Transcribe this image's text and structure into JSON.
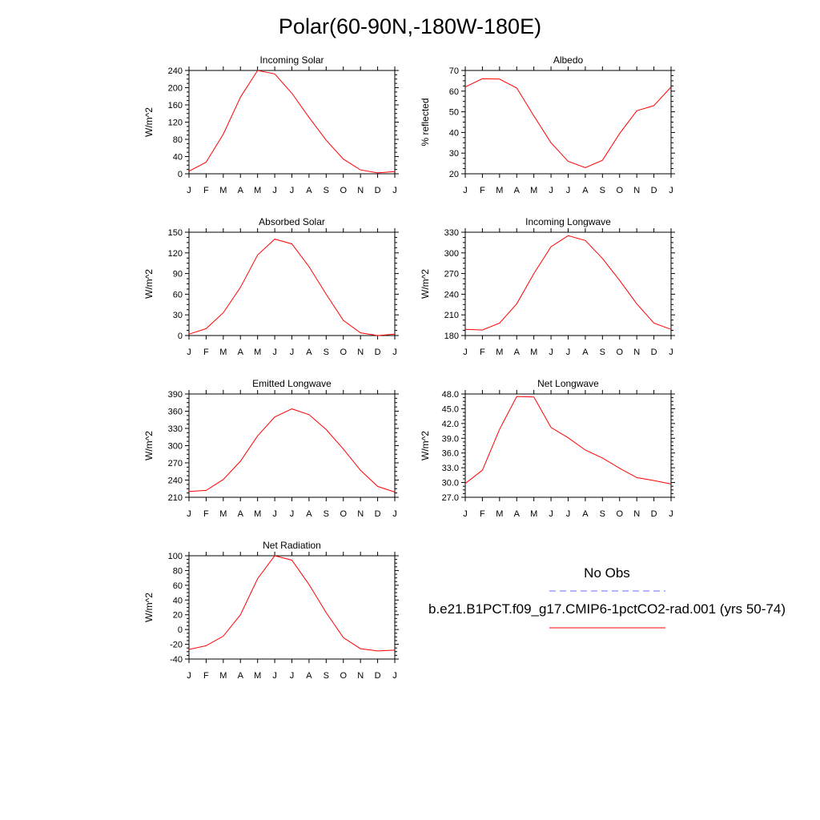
{
  "title": "Polar(60-90N,-180W-180E)",
  "colors": {
    "model": "#ff0000",
    "obs": "#6b6bff"
  },
  "legend": {
    "obs_label": "No Obs",
    "model_label": "b.e21.B1PCT.f09_g17.CMIP6-1pctCO2-rad.001 (yrs 50-74)"
  },
  "chart_data": [
    {
      "type": "line",
      "title": "Incoming Solar",
      "ylabel": "W/m^2",
      "categories": [
        "J",
        "F",
        "M",
        "A",
        "M",
        "J",
        "J",
        "A",
        "S",
        "O",
        "N",
        "D",
        "J"
      ],
      "ylim": [
        0,
        240
      ],
      "yticks": [
        "0",
        "40",
        "80",
        "120",
        "160",
        "200",
        "240"
      ],
      "series": [
        {
          "values": [
            6,
            27,
            92,
            178,
            240,
            232,
            187,
            131,
            78,
            34,
            9,
            2,
            5
          ]
        }
      ]
    },
    {
      "type": "line",
      "title": "Albedo",
      "ylabel": "% reflected",
      "categories": [
        "J",
        "F",
        "M",
        "A",
        "M",
        "J",
        "J",
        "A",
        "S",
        "O",
        "N",
        "D",
        "J"
      ],
      "ylim": [
        20,
        70
      ],
      "yticks": [
        "20",
        "30",
        "40",
        "50",
        "60",
        "70"
      ],
      "series": [
        {
          "values": [
            62,
            66,
            65.8,
            61.5,
            48,
            35,
            26,
            23,
            26.5,
            39.5,
            50.5,
            53,
            62
          ]
        }
      ]
    },
    {
      "type": "line",
      "title": "Absorbed Solar",
      "ylabel": "W/m^2",
      "categories": [
        "J",
        "F",
        "M",
        "A",
        "M",
        "J",
        "J",
        "A",
        "S",
        "O",
        "N",
        "D",
        "J"
      ],
      "ylim": [
        0,
        150
      ],
      "yticks": [
        "0",
        "30",
        "60",
        "90",
        "120",
        "150"
      ],
      "series": [
        {
          "values": [
            2,
            10,
            33,
            70,
            117,
            140,
            133,
            100,
            60,
            22,
            4,
            0,
            2
          ]
        }
      ]
    },
    {
      "type": "line",
      "title": "Incoming Longwave",
      "ylabel": "W/m^2",
      "categories": [
        "J",
        "F",
        "M",
        "A",
        "M",
        "J",
        "J",
        "A",
        "S",
        "O",
        "N",
        "D",
        "J"
      ],
      "ylim": [
        180,
        330
      ],
      "yticks": [
        "180",
        "210",
        "240",
        "270",
        "300",
        "330"
      ],
      "series": [
        {
          "values": [
            189,
            188,
            198,
            226,
            270,
            309,
            325,
            318,
            292,
            260,
            226,
            198,
            189
          ]
        }
      ]
    },
    {
      "type": "line",
      "title": "Emitted Longwave",
      "ylabel": "W/m^2",
      "categories": [
        "J",
        "F",
        "M",
        "A",
        "M",
        "J",
        "J",
        "A",
        "S",
        "O",
        "N",
        "D",
        "J"
      ],
      "ylim": [
        210,
        390
      ],
      "yticks": [
        "210",
        "240",
        "270",
        "300",
        "330",
        "360",
        "390"
      ],
      "series": [
        {
          "values": [
            220,
            222,
            241,
            273,
            317,
            350,
            364,
            354,
            328,
            294,
            257,
            229,
            219
          ]
        }
      ]
    },
    {
      "type": "line",
      "title": "Net Longwave",
      "ylabel": "W/m^2",
      "categories": [
        "J",
        "F",
        "M",
        "A",
        "M",
        "J",
        "J",
        "A",
        "S",
        "O",
        "N",
        "D",
        "J"
      ],
      "ylim": [
        27,
        48
      ],
      "yticks": [
        "27.0",
        "30.0",
        "33.0",
        "36.0",
        "39.0",
        "42.0",
        "45.0",
        "48.0"
      ],
      "series": [
        {
          "values": [
            29.8,
            32.5,
            40.8,
            47.5,
            47.4,
            41.2,
            39.1,
            36.6,
            35.0,
            32.9,
            31.0,
            30.4,
            29.7
          ]
        }
      ]
    },
    {
      "type": "line",
      "title": "Net Radiation",
      "ylabel": "W/m^2",
      "categories": [
        "J",
        "F",
        "M",
        "A",
        "M",
        "J",
        "J",
        "A",
        "S",
        "O",
        "N",
        "D",
        "J"
      ],
      "ylim": [
        -40,
        100
      ],
      "yticks": [
        "-40",
        "-20",
        "0",
        "20",
        "40",
        "60",
        "80",
        "100"
      ],
      "series": [
        {
          "values": [
            -27,
            -22,
            -9,
            20,
            69,
            100,
            94,
            61,
            23,
            -11,
            -26,
            -29,
            -28
          ]
        }
      ]
    }
  ]
}
